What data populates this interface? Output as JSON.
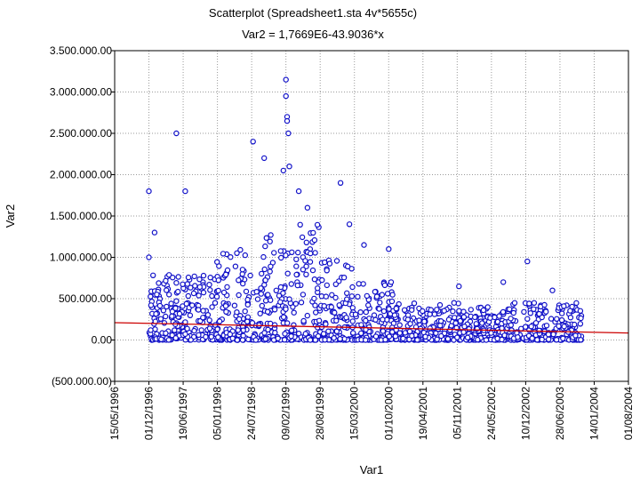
{
  "chart_data": {
    "type": "scatter",
    "title": "Scatterplot (Spreadsheet1.sta 4v*5655c)",
    "subtitle": "Var2 = 1,7669E6-43.9036*x",
    "xlabel": "Var1",
    "ylabel": "Var2",
    "grid": true,
    "x_date_range": [
      "15/05/1996",
      "01/08/2004"
    ],
    "ylim": [
      -500000,
      3500000
    ],
    "y_ticks": [
      3500000,
      3000000,
      2500000,
      2000000,
      1500000,
      1000000,
      500000,
      0,
      -500000
    ],
    "y_tick_labels": [
      "3.500.000.00",
      "3.000.000.00",
      "2.500.000.00",
      "2.000.000.00",
      "1.500.000.00",
      "1.000.000.00",
      "500.000.00",
      "0.00",
      "(500.000.00)"
    ],
    "x_tick_labels": [
      "15/05/1996",
      "01/12/1996",
      "19/06/1997",
      "05/01/1998",
      "24/07/1998",
      "09/02/1999",
      "28/08/1999",
      "15/03/2000",
      "01/10/2000",
      "19/04/2001",
      "05/11/2001",
      "24/05/2002",
      "10/12/2002",
      "28/06/2003",
      "14/01/2004",
      "01/08/2004"
    ],
    "fit_line": {
      "intercept": 1766900,
      "slope": -43.9036,
      "y_at_start": 210000,
      "y_at_end": 85000,
      "color": "#cc0000"
    },
    "point_color": "#1010c8",
    "notable_points": [
      {
        "date": "01/12/1996",
        "y": 1800000
      },
      {
        "date": "01/12/1996",
        "y": 1000000
      },
      {
        "date": "03/01/1997",
        "y": 1300000
      },
      {
        "date": "10/05/1997",
        "y": 2500000
      },
      {
        "date": "01/07/1997",
        "y": 1800000
      },
      {
        "date": "01/08/1998",
        "y": 2400000
      },
      {
        "date": "05/10/1998",
        "y": 2200000
      },
      {
        "date": "25/01/1999",
        "y": 2050000
      },
      {
        "date": "09/02/1999",
        "y": 3150000
      },
      {
        "date": "09/02/1999",
        "y": 2950000
      },
      {
        "date": "16/02/1999",
        "y": 2700000
      },
      {
        "date": "16/02/1999",
        "y": 2650000
      },
      {
        "date": "23/02/1999",
        "y": 2500000
      },
      {
        "date": "01/03/1999",
        "y": 2100000
      },
      {
        "date": "25/04/1999",
        "y": 1800000
      },
      {
        "date": "15/06/1999",
        "y": 1600000
      },
      {
        "date": "25/12/1999",
        "y": 1900000
      },
      {
        "date": "15/02/2000",
        "y": 1400000
      },
      {
        "date": "10/05/2000",
        "y": 1150000
      },
      {
        "date": "01/10/2000",
        "y": 1100000
      },
      {
        "date": "15/10/2000",
        "y": 700000
      },
      {
        "date": "15/11/2001",
        "y": 650000
      },
      {
        "date": "01/08/2002",
        "y": 700000
      },
      {
        "date": "20/12/2002",
        "y": 950000
      },
      {
        "date": "15/05/2003",
        "y": 600000
      }
    ],
    "bulk_clusters": [
      {
        "from": "01/12/1996",
        "to": "01/01/1998",
        "typical_max": 800000
      },
      {
        "from": "01/01/1998",
        "to": "01/10/1998",
        "typical_max": 1100000
      },
      {
        "from": "01/10/1998",
        "to": "01/09/1999",
        "typical_max": 1400000
      },
      {
        "from": "01/09/1999",
        "to": "15/03/2000",
        "typical_max": 1000000
      },
      {
        "from": "15/03/2000",
        "to": "01/11/2000",
        "typical_max": 700000
      },
      {
        "from": "01/11/2000",
        "to": "01/12/2001",
        "typical_max": 450000
      },
      {
        "from": "01/12/2001",
        "to": "01/09/2002",
        "typical_max": 400000
      },
      {
        "from": "01/09/2002",
        "to": "01/11/2003",
        "typical_max": 450000
      }
    ]
  }
}
